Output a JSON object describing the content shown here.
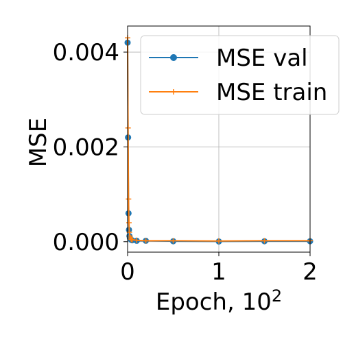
{
  "chart_data": {
    "type": "line",
    "xlabel": "Epoch, 10",
    "xlabel_superscript": "2",
    "ylabel": "MSE",
    "xlim": [
      0,
      2
    ],
    "ylim": [
      -0.00022,
      0.00455
    ],
    "x_ticks": [
      0,
      1,
      2
    ],
    "x_tick_labels": [
      "0",
      "1",
      "2"
    ],
    "y_ticks": [
      0.0,
      0.002,
      0.004
    ],
    "y_tick_labels": [
      "0.000",
      "0.002",
      "0.004"
    ],
    "grid": true,
    "legend_position": "top-right",
    "series": [
      {
        "name": "MSE val",
        "color": "#1f77b4",
        "marker": "circle",
        "x": [
          0.0,
          0.005,
          0.01,
          0.015,
          0.02,
          0.025,
          0.03,
          0.04,
          0.05,
          0.1,
          0.2,
          0.5,
          1.0,
          1.5,
          2.0
        ],
        "y": [
          0.0042,
          0.0022,
          0.0006,
          0.00025,
          0.00012,
          8e-05,
          6e-05,
          4e-05,
          3e-05,
          2e-05,
          2e-05,
          1e-05,
          5e-06,
          1e-05,
          1e-05
        ]
      },
      {
        "name": "MSE train",
        "color": "#ff7f0e",
        "marker": "plus",
        "x": [
          0.0,
          0.005,
          0.01,
          0.015,
          0.02,
          0.025,
          0.03,
          0.04,
          0.05,
          0.1,
          0.2,
          0.5,
          1.0,
          1.5,
          2.0
        ],
        "y": [
          0.0043,
          0.0024,
          0.0009,
          0.0004,
          0.0002,
          0.00012,
          8e-05,
          5e-05,
          4e-05,
          3e-05,
          2e-05,
          2e-05,
          1.5e-05,
          2e-05,
          2e-05
        ]
      }
    ]
  }
}
